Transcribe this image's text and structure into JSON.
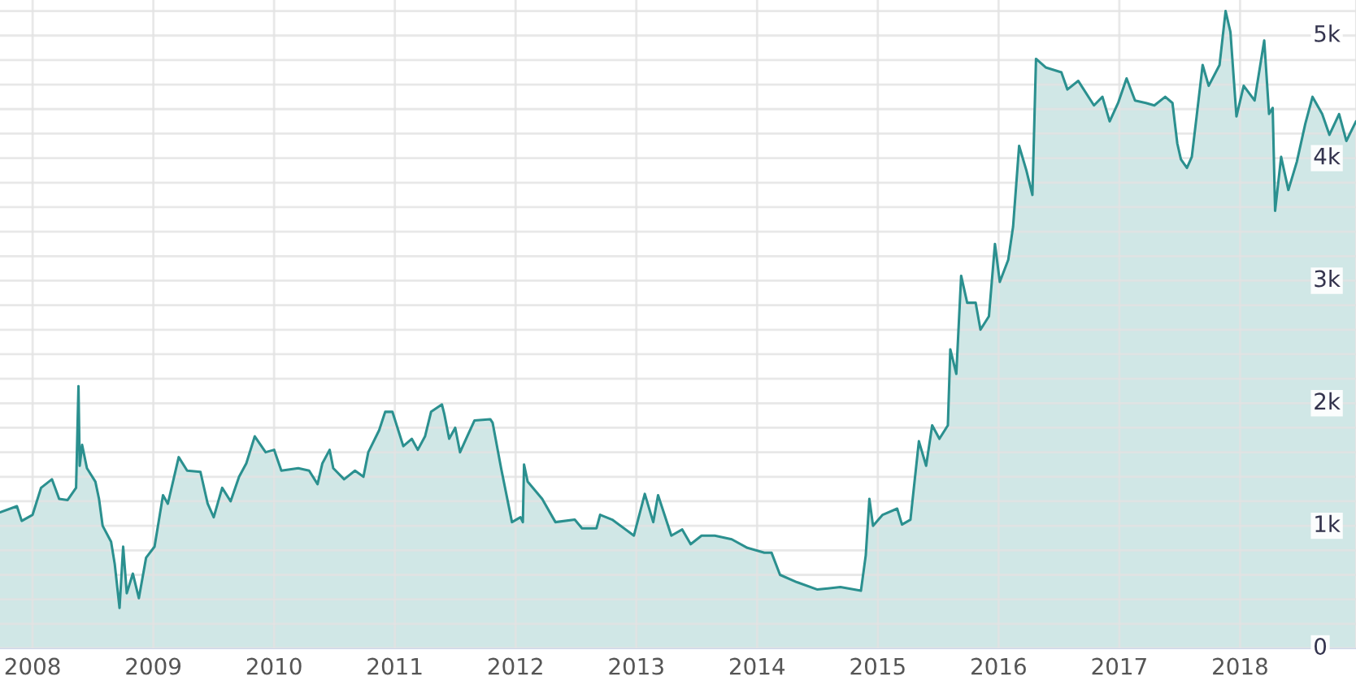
{
  "chart_data": {
    "type": "area",
    "x": [
      2007.73,
      2007.87,
      2007.91,
      2008.0,
      2008.07,
      2008.16,
      2008.22,
      2008.29,
      2008.36,
      2008.38,
      2008.39,
      2008.41,
      2008.45,
      2008.52,
      2008.55,
      2008.58,
      2008.65,
      2008.68,
      2008.72,
      2008.75,
      2008.78,
      2008.83,
      2008.88,
      2008.94,
      2009.01,
      2009.08,
      2009.12,
      2009.21,
      2009.28,
      2009.39,
      2009.45,
      2009.5,
      2009.57,
      2009.64,
      2009.71,
      2009.77,
      2009.84,
      2009.93,
      2010.0,
      2010.06,
      2010.2,
      2010.29,
      2010.36,
      2010.4,
      2010.46,
      2010.49,
      2010.58,
      2010.67,
      2010.74,
      2010.78,
      2010.87,
      2010.92,
      2010.98,
      2011.07,
      2011.14,
      2011.19,
      2011.25,
      2011.3,
      2011.39,
      2011.41,
      2011.45,
      2011.5,
      2011.54,
      2011.59,
      2011.66,
      2011.79,
      2011.81,
      2011.88,
      2011.97,
      2012.04,
      2012.06,
      2012.07,
      2012.1,
      2012.22,
      2012.33,
      2012.49,
      2012.55,
      2012.67,
      2012.7,
      2012.8,
      2012.98,
      2013.07,
      2013.14,
      2013.18,
      2013.29,
      2013.38,
      2013.45,
      2013.54,
      2013.65,
      2013.79,
      2013.92,
      2014.06,
      2014.12,
      2014.19,
      2014.33,
      2014.5,
      2014.69,
      2014.86,
      2014.9,
      2014.93,
      2014.96,
      2015.04,
      2015.16,
      2015.2,
      2015.27,
      2015.34,
      2015.4,
      2015.45,
      2015.51,
      2015.58,
      2015.6,
      2015.65,
      2015.69,
      2015.74,
      2015.81,
      2015.85,
      2015.92,
      2015.97,
      2016.01,
      2016.08,
      2016.12,
      2016.17,
      2016.23,
      2016.28,
      2016.31,
      2016.39,
      2016.52,
      2016.57,
      2016.66,
      2016.79,
      2016.86,
      2016.92,
      2016.99,
      2017.06,
      2017.13,
      2017.22,
      2017.29,
      2017.38,
      2017.44,
      2017.48,
      2017.51,
      2017.56,
      2017.6,
      2017.64,
      2017.69,
      2017.74,
      2017.83,
      2017.88,
      2017.92,
      2017.97,
      2018.03,
      2018.12,
      2018.2,
      2018.24,
      2018.27,
      2018.29,
      2018.34,
      2018.4,
      2018.47,
      2018.54,
      2018.6,
      2018.68,
      2018.74,
      2018.82,
      2018.88,
      2018.96
    ],
    "series": [
      {
        "color": "#2b908f",
        "values": [
          1110,
          1160,
          1040,
          1090,
          1310,
          1380,
          1220,
          1210,
          1310,
          2140,
          1490,
          1660,
          1470,
          1360,
          1220,
          1000,
          870,
          690,
          330,
          830,
          450,
          610,
          410,
          740,
          830,
          1250,
          1180,
          1560,
          1450,
          1440,
          1180,
          1070,
          1310,
          1200,
          1400,
          1510,
          1730,
          1600,
          1620,
          1450,
          1470,
          1450,
          1340,
          1510,
          1620,
          1470,
          1380,
          1450,
          1400,
          1600,
          1780,
          1930,
          1930,
          1650,
          1710,
          1620,
          1730,
          1930,
          1990,
          1910,
          1710,
          1800,
          1600,
          1710,
          1860,
          1870,
          1840,
          1470,
          1030,
          1070,
          1030,
          1500,
          1360,
          1220,
          1030,
          1050,
          980,
          980,
          1090,
          1050,
          920,
          1260,
          1030,
          1250,
          920,
          970,
          850,
          920,
          920,
          890,
          820,
          780,
          780,
          600,
          540,
          480,
          500,
          470,
          760,
          1220,
          1000,
          1090,
          1140,
          1010,
          1050,
          1690,
          1490,
          1820,
          1710,
          1820,
          2440,
          2240,
          3040,
          2820,
          2820,
          2600,
          2710,
          3300,
          2990,
          3170,
          3440,
          4100,
          3900,
          3700,
          4810,
          4740,
          4700,
          4560,
          4630,
          4430,
          4500,
          4300,
          4450,
          4650,
          4470,
          4450,
          4430,
          4500,
          4450,
          4120,
          3990,
          3920,
          4010,
          4340,
          4760,
          4590,
          4760,
          5200,
          5030,
          4340,
          4590,
          4470,
          4960,
          4360,
          4410,
          3570,
          4010,
          3740,
          3970,
          4280,
          4500,
          4360,
          4190,
          4360,
          4140,
          4300
        ]
      }
    ],
    "xlim": [
      2007.73,
      2018.96
    ],
    "xticks": [
      2008,
      2009,
      2010,
      2011,
      2012,
      2013,
      2014,
      2015,
      2016,
      2017,
      2018
    ],
    "ylim": [
      0,
      5290
    ],
    "yticks": [
      0,
      {
        "value": 200,
        "label": null
      },
      {
        "value": 400,
        "label": null
      },
      {
        "value": 600,
        "label": null
      },
      {
        "value": 800,
        "label": null
      },
      {
        "value": 1000,
        "label": "1k"
      },
      {
        "value": 1200,
        "label": null
      },
      {
        "value": 1400,
        "label": null
      },
      {
        "value": 1600,
        "label": null
      },
      {
        "value": 1800,
        "label": null
      },
      {
        "value": 2000,
        "label": "2k"
      },
      {
        "value": 2200,
        "label": null
      },
      {
        "value": 2400,
        "label": null
      },
      {
        "value": 2600,
        "label": null
      },
      {
        "value": 2800,
        "label": null
      },
      {
        "value": 3000,
        "label": "3k"
      },
      {
        "value": 3200,
        "label": null
      },
      {
        "value": 3400,
        "label": null
      },
      {
        "value": 3600,
        "label": null
      },
      {
        "value": 3800,
        "label": null
      },
      {
        "value": 4000,
        "label": "4k"
      },
      {
        "value": 4200,
        "label": null
      },
      {
        "value": 4400,
        "label": null
      },
      {
        "value": 4600,
        "label": null
      },
      {
        "value": 4800,
        "label": null
      },
      {
        "value": 5000,
        "label": "5k"
      },
      {
        "value": 5200,
        "label": null
      }
    ],
    "grid": true
  }
}
